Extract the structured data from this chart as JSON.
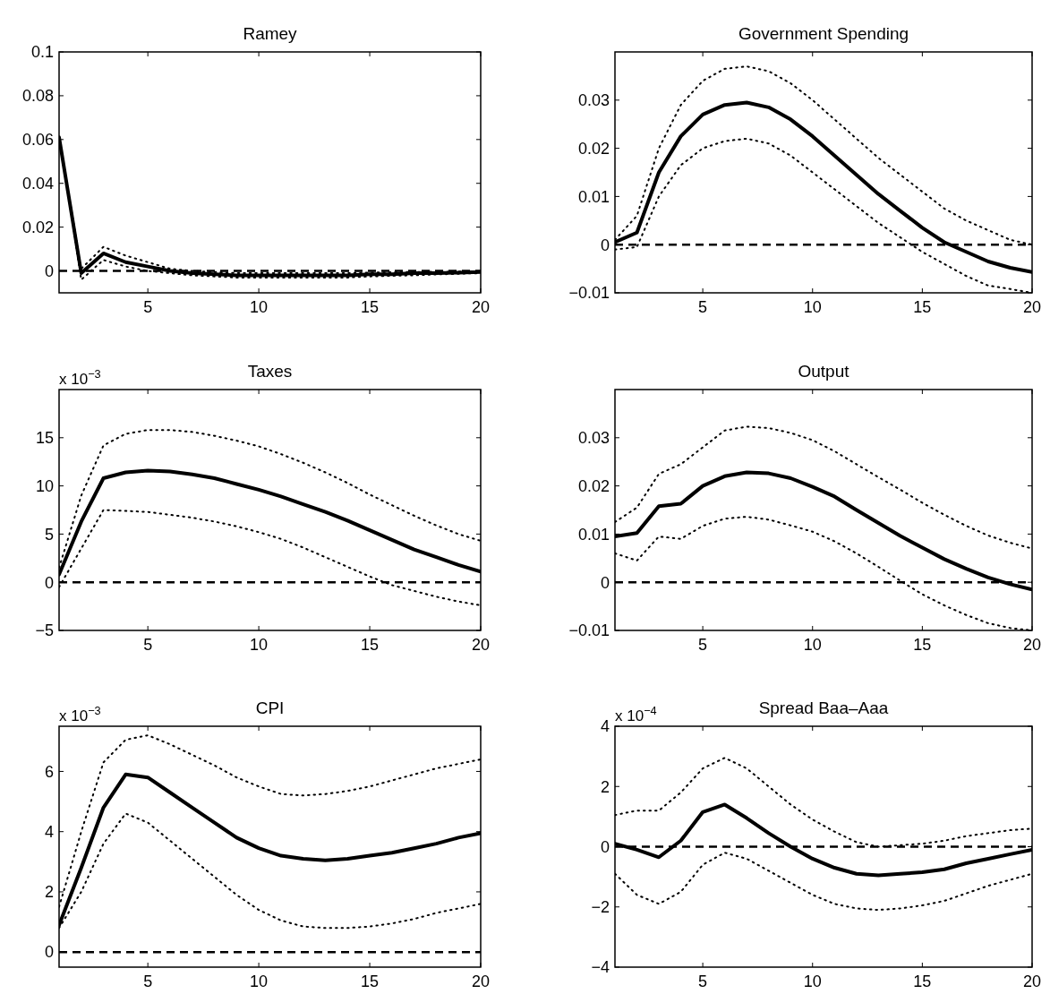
{
  "chart_data": [
    {
      "type": "line",
      "title": "Ramey",
      "x": [
        1,
        2,
        3,
        4,
        5,
        6,
        7,
        8,
        9,
        10,
        11,
        12,
        13,
        14,
        15,
        16,
        17,
        18,
        19,
        20
      ],
      "xlim": [
        1,
        20
      ],
      "xticks": [
        5,
        10,
        15,
        20
      ],
      "ylim": [
        -0.01,
        0.1
      ],
      "yticks": [
        0,
        0.02,
        0.04,
        0.06,
        0.08,
        0.1
      ],
      "ref_lines": [
        {
          "axis": "y",
          "value": 0,
          "line_style": "dashed",
          "color": "#000000"
        }
      ],
      "series": [
        {
          "color": "#000000",
          "line_style": "solid",
          "values": [
            0.061,
            -0.001,
            0.008,
            0.004,
            0.002,
            0,
            -0.001,
            -0.0015,
            -0.002,
            -0.002,
            -0.002,
            -0.002,
            -0.002,
            -0.002,
            -0.0015,
            -0.0015,
            -0.001,
            -0.001,
            -0.0008,
            -0.0005
          ]
        },
        {
          "color": "#000000",
          "line_style": "dotted",
          "values": [
            0.061,
            0.001,
            0.011,
            0.007,
            0.004,
            0.001,
            0,
            -0.0005,
            -0.001,
            -0.001,
            -0.001,
            -0.001,
            -0.001,
            -0.001,
            -0.0008,
            -0.0006,
            -0.0005,
            -0.0004,
            -0.0003,
            -0.0002
          ]
        },
        {
          "color": "#000000",
          "line_style": "dotted",
          "values": [
            0.061,
            -0.004,
            0.005,
            0.002,
            0,
            -0.001,
            -0.002,
            -0.0025,
            -0.003,
            -0.003,
            -0.003,
            -0.003,
            -0.003,
            -0.003,
            -0.0025,
            -0.0022,
            -0.002,
            -0.0016,
            -0.0013,
            -0.001
          ]
        }
      ]
    },
    {
      "type": "line",
      "title": "Government Spending",
      "x": [
        1,
        2,
        3,
        4,
        5,
        6,
        7,
        8,
        9,
        10,
        11,
        12,
        13,
        14,
        15,
        16,
        17,
        18,
        19,
        20
      ],
      "xlim": [
        1,
        20
      ],
      "xticks": [
        5,
        10,
        15,
        20
      ],
      "ylim": [
        -0.01,
        0.04
      ],
      "yticks": [
        -0.01,
        0,
        0.01,
        0.02,
        0.03
      ],
      "ref_lines": [
        {
          "axis": "y",
          "value": 0,
          "line_style": "dashed",
          "color": "#000000"
        }
      ],
      "series": [
        {
          "color": "#000000",
          "line_style": "solid",
          "values": [
            0.0005,
            0.0025,
            0.015,
            0.0225,
            0.027,
            0.029,
            0.0295,
            0.0285,
            0.026,
            0.0225,
            0.0185,
            0.0145,
            0.0105,
            0.007,
            0.0035,
            0.0005,
            -0.0015,
            -0.0035,
            -0.0048,
            -0.0057
          ]
        },
        {
          "color": "#000000",
          "line_style": "dotted",
          "values": [
            0.001,
            0.006,
            0.02,
            0.029,
            0.034,
            0.0365,
            0.037,
            0.036,
            0.0335,
            0.03,
            0.026,
            0.022,
            0.018,
            0.0145,
            0.011,
            0.0075,
            0.005,
            0.003,
            0.001,
            0
          ]
        },
        {
          "color": "#000000",
          "line_style": "dotted",
          "values": [
            -0.001,
            -0.0005,
            0.01,
            0.0165,
            0.02,
            0.0215,
            0.022,
            0.021,
            0.0185,
            0.015,
            0.0115,
            0.008,
            0.0045,
            0.0015,
            -0.0015,
            -0.004,
            -0.0065,
            -0.0085,
            -0.0092,
            -0.01
          ]
        }
      ]
    },
    {
      "type": "line",
      "title": "Taxes",
      "annotations": [
        "x 10$^{−3}$"
      ],
      "x": [
        1,
        2,
        3,
        4,
        5,
        6,
        7,
        8,
        9,
        10,
        11,
        12,
        13,
        14,
        15,
        16,
        17,
        18,
        19,
        20
      ],
      "xlim": [
        1,
        20
      ],
      "xticks": [
        5,
        10,
        15,
        20
      ],
      "ylim": [
        -5,
        20
      ],
      "yticks": [
        -5,
        0,
        5,
        10,
        15
      ],
      "ref_lines": [
        {
          "axis": "y",
          "value": 0,
          "line_style": "dashed",
          "color": "#000000"
        }
      ],
      "series": [
        {
          "color": "#000000",
          "line_style": "solid",
          "values": [
            0.8,
            6.3,
            10.8,
            11.4,
            11.6,
            11.5,
            11.2,
            10.8,
            10.2,
            9.6,
            8.9,
            8.1,
            7.3,
            6.4,
            5.4,
            4.4,
            3.4,
            2.6,
            1.8,
            1.1
          ]
        },
        {
          "color": "#000000",
          "line_style": "dotted",
          "values": [
            1.5,
            9,
            14.2,
            15.4,
            15.8,
            15.8,
            15.6,
            15.2,
            14.7,
            14.1,
            13.3,
            12.4,
            11.4,
            10.3,
            9.1,
            8,
            6.9,
            5.9,
            5,
            4.3
          ]
        },
        {
          "color": "#000000",
          "line_style": "dotted",
          "values": [
            -0.5,
            3.5,
            7.5,
            7.4,
            7.3,
            7,
            6.7,
            6.3,
            5.8,
            5.2,
            4.5,
            3.6,
            2.6,
            1.6,
            0.6,
            -0.3,
            -0.9,
            -1.5,
            -2,
            -2.4
          ]
        }
      ]
    },
    {
      "type": "line",
      "title": "Output",
      "x": [
        1,
        2,
        3,
        4,
        5,
        6,
        7,
        8,
        9,
        10,
        11,
        12,
        13,
        14,
        15,
        16,
        17,
        18,
        19,
        20
      ],
      "xlim": [
        1,
        20
      ],
      "xticks": [
        5,
        10,
        15,
        20
      ],
      "ylim": [
        -0.01,
        0.04
      ],
      "yticks": [
        -0.01,
        0,
        0.01,
        0.02,
        0.03
      ],
      "ref_lines": [
        {
          "axis": "y",
          "value": 0,
          "line_style": "dashed",
          "color": "#000000"
        }
      ],
      "series": [
        {
          "color": "#000000",
          "line_style": "solid",
          "values": [
            0.0095,
            0.0102,
            0.0158,
            0.0163,
            0.02,
            0.022,
            0.0228,
            0.0226,
            0.0216,
            0.0198,
            0.0178,
            0.015,
            0.0123,
            0.0096,
            0.0072,
            0.0048,
            0.0028,
            0.001,
            -0.0004,
            -0.0015
          ]
        },
        {
          "color": "#000000",
          "line_style": "dotted",
          "values": [
            0.0125,
            0.0155,
            0.0225,
            0.0245,
            0.028,
            0.0315,
            0.0323,
            0.032,
            0.031,
            0.0295,
            0.0272,
            0.0245,
            0.0218,
            0.0192,
            0.0165,
            0.014,
            0.0117,
            0.0097,
            0.0082,
            0.007
          ]
        },
        {
          "color": "#000000",
          "line_style": "dotted",
          "values": [
            0.006,
            0.0045,
            0.0095,
            0.009,
            0.0117,
            0.0132,
            0.0136,
            0.013,
            0.0118,
            0.0105,
            0.0085,
            0.006,
            0.0032,
            0.0003,
            -0.0025,
            -0.0048,
            -0.0068,
            -0.0085,
            -0.0095,
            -0.01
          ]
        }
      ]
    },
    {
      "type": "line",
      "title": "CPI",
      "annotations": [
        "x 10$^{−3}$"
      ],
      "x": [
        1,
        2,
        3,
        4,
        5,
        6,
        7,
        8,
        9,
        10,
        11,
        12,
        13,
        14,
        15,
        16,
        17,
        18,
        19,
        20
      ],
      "xlim": [
        1,
        20
      ],
      "xticks": [
        5,
        10,
        15,
        20
      ],
      "ylim": [
        -0.5,
        7.5
      ],
      "yticks": [
        0,
        2,
        4,
        6
      ],
      "ref_lines": [
        {
          "axis": "y",
          "value": 0,
          "line_style": "dashed",
          "color": "#000000"
        }
      ],
      "series": [
        {
          "color": "#000000",
          "line_style": "solid",
          "values": [
            0.9,
            2.8,
            4.8,
            5.9,
            5.8,
            5.3,
            4.8,
            4.3,
            3.8,
            3.45,
            3.2,
            3.1,
            3.05,
            3.1,
            3.2,
            3.3,
            3.45,
            3.6,
            3.8,
            3.95
          ]
        },
        {
          "color": "#000000",
          "line_style": "dotted",
          "values": [
            1.5,
            4,
            6.3,
            7.05,
            7.2,
            6.9,
            6.55,
            6.2,
            5.8,
            5.5,
            5.25,
            5.2,
            5.25,
            5.35,
            5.5,
            5.7,
            5.9,
            6.1,
            6.25,
            6.4
          ]
        },
        {
          "color": "#000000",
          "line_style": "dotted",
          "values": [
            0.8,
            2,
            3.6,
            4.6,
            4.3,
            3.7,
            3.1,
            2.5,
            1.9,
            1.4,
            1.05,
            0.85,
            0.8,
            0.8,
            0.85,
            0.95,
            1.1,
            1.3,
            1.45,
            1.6
          ]
        }
      ]
    },
    {
      "type": "line",
      "title": "Spread Baa–Aaa",
      "annotations": [
        "x 10$^{−4}$"
      ],
      "x": [
        1,
        2,
        3,
        4,
        5,
        6,
        7,
        8,
        9,
        10,
        11,
        12,
        13,
        14,
        15,
        16,
        17,
        18,
        19,
        20
      ],
      "xlim": [
        1,
        20
      ],
      "xticks": [
        5,
        10,
        15,
        20
      ],
      "ylim": [
        -4,
        4
      ],
      "yticks": [
        -4,
        -2,
        0,
        2,
        4
      ],
      "ref_lines": [
        {
          "axis": "y",
          "value": 0,
          "line_style": "dashed",
          "color": "#000000"
        }
      ],
      "series": [
        {
          "color": "#000000",
          "line_style": "solid",
          "values": [
            0.1,
            -0.1,
            -0.35,
            0.2,
            1.15,
            1.4,
            0.95,
            0.45,
            0,
            -0.4,
            -0.7,
            -0.9,
            -0.95,
            -0.9,
            -0.85,
            -0.75,
            -0.55,
            -0.4,
            -0.25,
            -0.1
          ]
        },
        {
          "color": "#000000",
          "line_style": "dotted",
          "values": [
            1.05,
            1.2,
            1.2,
            1.8,
            2.6,
            2.95,
            2.6,
            2,
            1.4,
            0.9,
            0.5,
            0.15,
            0,
            0.05,
            0.1,
            0.2,
            0.35,
            0.45,
            0.55,
            0.6
          ]
        },
        {
          "color": "#000000",
          "line_style": "dotted",
          "values": [
            -0.9,
            -1.6,
            -1.9,
            -1.5,
            -0.6,
            -0.2,
            -0.4,
            -0.8,
            -1.2,
            -1.6,
            -1.9,
            -2.05,
            -2.1,
            -2.05,
            -1.95,
            -1.8,
            -1.55,
            -1.3,
            -1.1,
            -0.9
          ]
        }
      ]
    }
  ]
}
